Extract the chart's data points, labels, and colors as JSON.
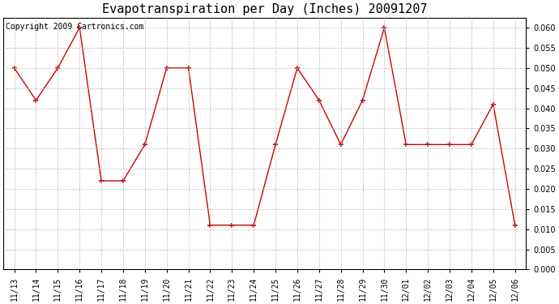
{
  "title": "Evapotranspiration per Day (Inches) 20091207",
  "copyright": "Copyright 2009 Cartronics.com",
  "x_labels": [
    "11/13",
    "11/14",
    "11/15",
    "11/16",
    "11/17",
    "11/18",
    "11/19",
    "11/20",
    "11/21",
    "11/22",
    "11/23",
    "11/24",
    "11/25",
    "11/26",
    "11/27",
    "11/28",
    "11/29",
    "11/30",
    "12/01",
    "12/02",
    "12/03",
    "12/04",
    "12/05",
    "12/06"
  ],
  "y_values": [
    0.05,
    0.042,
    0.05,
    0.06,
    0.022,
    0.022,
    0.031,
    0.05,
    0.05,
    0.011,
    0.011,
    0.011,
    0.031,
    0.05,
    0.042,
    0.031,
    0.042,
    0.06,
    0.031,
    0.031,
    0.031,
    0.031,
    0.041,
    0.011
  ],
  "line_color": "#cc0000",
  "marker": "+",
  "marker_size": 4,
  "marker_linewidth": 1.2,
  "ylim": [
    0.0,
    0.0625
  ],
  "yticks": [
    0.0,
    0.005,
    0.01,
    0.015,
    0.02,
    0.025,
    0.03,
    0.035,
    0.04,
    0.045,
    0.05,
    0.055,
    0.06
  ],
  "grid_color": "#bbbbbb",
  "background_color": "#ffffff",
  "title_fontsize": 11,
  "copyright_fontsize": 7,
  "tick_fontsize": 7,
  "linewidth": 1.0
}
